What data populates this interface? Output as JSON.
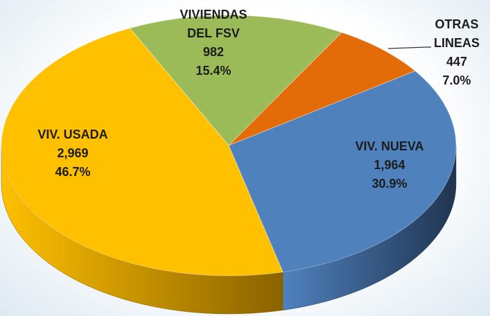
{
  "chart_data": {
    "type": "pie",
    "categories": [
      "VIVIENDAS DEL FSV",
      "OTRAS LINEAS",
      "VIV. NUEVA",
      "VIV. USADA"
    ],
    "values": [
      982,
      447,
      1964,
      2969
    ],
    "value_labels": [
      "982",
      "447",
      "1,964",
      "2,969"
    ],
    "percent": [
      15.4,
      7.0,
      30.9,
      46.7
    ],
    "percent_labels": [
      "15.4%",
      "7.0%",
      "30.9%",
      "46.7%"
    ],
    "colors": [
      "#9bbb59",
      "#e36c09",
      "#4f81bd",
      "#ffc000"
    ],
    "side_colors": [
      "#6f8a3c",
      "#a04a05",
      "#1f3550",
      "#8a6200"
    ]
  }
}
